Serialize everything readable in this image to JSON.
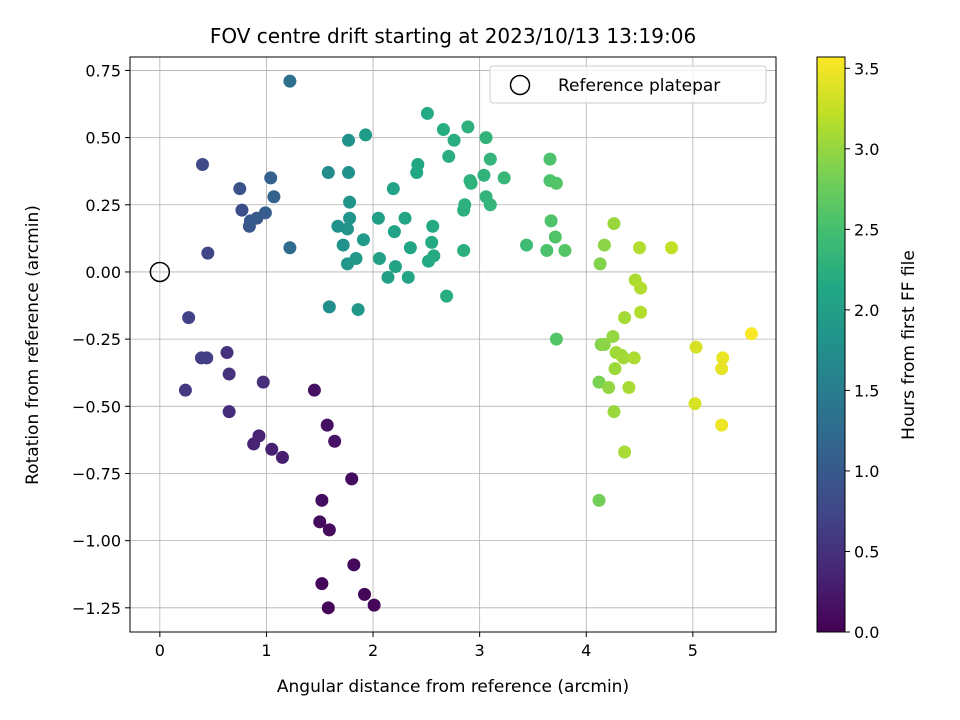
{
  "chart_data": {
    "type": "scatter",
    "title": "FOV centre drift starting at 2023/10/13 13:19:06",
    "xlabel": "Angular distance from reference (arcmin)",
    "ylabel": "Rotation from reference (arcmin)",
    "xlim": [
      -0.28,
      5.78
    ],
    "ylim": [
      -1.34,
      0.8
    ],
    "x_ticks": [
      0,
      1,
      2,
      3,
      4,
      5
    ],
    "x_tick_labels": [
      "0",
      "1",
      "2",
      "3",
      "4",
      "5"
    ],
    "y_ticks": [
      0.75,
      0.5,
      0.25,
      0.0,
      -0.25,
      -0.5,
      -0.75,
      -1.0,
      -1.25
    ],
    "y_tick_labels": [
      "0.75",
      "0.50",
      "0.25",
      "0.00",
      "−0.25",
      "−0.50",
      "−0.75",
      "−1.00",
      "−1.25"
    ],
    "grid": true,
    "colormap": "viridis",
    "colorbar": {
      "label": "Hours from first FF file",
      "min": 0.0,
      "max": 3.57,
      "ticks": [
        0.0,
        0.5,
        1.0,
        1.5,
        2.0,
        2.5,
        3.0,
        3.5
      ],
      "tick_labels": [
        "0.0",
        "0.5",
        "1.0",
        "1.5",
        "2.0",
        "2.5",
        "3.0",
        "3.5"
      ]
    },
    "legend": {
      "placement": "top-right",
      "entries": [
        {
          "label": "Reference platepar",
          "marker": "open-circle"
        }
      ]
    },
    "reference_point": {
      "x": 0.0,
      "y": 0.0
    },
    "points": [
      {
        "x": 1.52,
        "y": -1.16,
        "c": 0.05
      },
      {
        "x": 1.58,
        "y": -1.25,
        "c": 0.05
      },
      {
        "x": 1.92,
        "y": -1.2,
        "c": 0.06
      },
      {
        "x": 2.01,
        "y": -1.24,
        "c": 0.06
      },
      {
        "x": 1.82,
        "y": -1.09,
        "c": 0.08
      },
      {
        "x": 1.5,
        "y": -0.93,
        "c": 0.1
      },
      {
        "x": 1.59,
        "y": -0.96,
        "c": 0.1
      },
      {
        "x": 1.52,
        "y": -0.85,
        "c": 0.12
      },
      {
        "x": 1.8,
        "y": -0.77,
        "c": 0.12
      },
      {
        "x": 1.45,
        "y": -0.44,
        "c": 0.15
      },
      {
        "x": 1.57,
        "y": -0.57,
        "c": 0.15
      },
      {
        "x": 1.64,
        "y": -0.63,
        "c": 0.18
      },
      {
        "x": 1.15,
        "y": -0.69,
        "c": 0.3
      },
      {
        "x": 1.05,
        "y": -0.66,
        "c": 0.32
      },
      {
        "x": 0.88,
        "y": -0.64,
        "c": 0.35
      },
      {
        "x": 0.93,
        "y": -0.61,
        "c": 0.36
      },
      {
        "x": 0.65,
        "y": -0.52,
        "c": 0.45
      },
      {
        "x": 0.97,
        "y": -0.41,
        "c": 0.48
      },
      {
        "x": 0.63,
        "y": -0.3,
        "c": 0.5
      },
      {
        "x": 0.65,
        "y": -0.38,
        "c": 0.52
      },
      {
        "x": 0.24,
        "y": -0.44,
        "c": 0.6
      },
      {
        "x": 0.39,
        "y": -0.32,
        "c": 0.65
      },
      {
        "x": 0.44,
        "y": -0.32,
        "c": 0.66
      },
      {
        "x": 0.27,
        "y": -0.17,
        "c": 0.7
      },
      {
        "x": 0.45,
        "y": 0.07,
        "c": 0.75
      },
      {
        "x": 0.4,
        "y": 0.4,
        "c": 0.8
      },
      {
        "x": 0.77,
        "y": 0.23,
        "c": 0.85
      },
      {
        "x": 0.75,
        "y": 0.31,
        "c": 0.9
      },
      {
        "x": 0.85,
        "y": 0.19,
        "c": 0.95
      },
      {
        "x": 0.84,
        "y": 0.17,
        "c": 0.97
      },
      {
        "x": 0.91,
        "y": 0.2,
        "c": 1.0
      },
      {
        "x": 0.99,
        "y": 0.22,
        "c": 1.05
      },
      {
        "x": 1.04,
        "y": 0.35,
        "c": 1.1
      },
      {
        "x": 1.07,
        "y": 0.28,
        "c": 1.12
      },
      {
        "x": 1.22,
        "y": 0.09,
        "c": 1.25
      },
      {
        "x": 1.22,
        "y": 0.71,
        "c": 1.3
      },
      {
        "x": 1.58,
        "y": 0.37,
        "c": 1.7
      },
      {
        "x": 1.59,
        "y": -0.13,
        "c": 1.75
      },
      {
        "x": 1.67,
        "y": 0.17,
        "c": 1.78
      },
      {
        "x": 1.72,
        "y": 0.1,
        "c": 1.8
      },
      {
        "x": 1.76,
        "y": 0.16,
        "c": 1.82
      },
      {
        "x": 1.77,
        "y": 0.37,
        "c": 1.8
      },
      {
        "x": 1.77,
        "y": 0.49,
        "c": 1.82
      },
      {
        "x": 1.78,
        "y": 0.2,
        "c": 1.84
      },
      {
        "x": 1.78,
        "y": 0.26,
        "c": 1.85
      },
      {
        "x": 1.76,
        "y": 0.03,
        "c": 1.86
      },
      {
        "x": 1.84,
        "y": 0.05,
        "c": 1.9
      },
      {
        "x": 1.86,
        "y": -0.14,
        "c": 1.9
      },
      {
        "x": 1.91,
        "y": 0.12,
        "c": 1.92
      },
      {
        "x": 1.93,
        "y": 0.51,
        "c": 1.95
      },
      {
        "x": 2.05,
        "y": 0.2,
        "c": 2.0
      },
      {
        "x": 2.06,
        "y": 0.05,
        "c": 2.0
      },
      {
        "x": 2.14,
        "y": -0.02,
        "c": 2.02
      },
      {
        "x": 2.19,
        "y": 0.31,
        "c": 2.05
      },
      {
        "x": 2.2,
        "y": 0.15,
        "c": 2.05
      },
      {
        "x": 2.21,
        "y": 0.02,
        "c": 2.06
      },
      {
        "x": 2.3,
        "y": 0.2,
        "c": 2.08
      },
      {
        "x": 2.33,
        "y": -0.02,
        "c": 2.08
      },
      {
        "x": 2.35,
        "y": 0.09,
        "c": 2.1
      },
      {
        "x": 2.41,
        "y": 0.37,
        "c": 2.12
      },
      {
        "x": 2.42,
        "y": 0.4,
        "c": 2.12
      },
      {
        "x": 2.51,
        "y": 0.59,
        "c": 2.15
      },
      {
        "x": 2.52,
        "y": 0.04,
        "c": 2.15
      },
      {
        "x": 2.55,
        "y": 0.11,
        "c": 2.16
      },
      {
        "x": 2.56,
        "y": 0.17,
        "c": 2.16
      },
      {
        "x": 2.57,
        "y": 0.06,
        "c": 2.17
      },
      {
        "x": 2.66,
        "y": 0.53,
        "c": 2.2
      },
      {
        "x": 2.69,
        "y": -0.09,
        "c": 2.2
      },
      {
        "x": 2.71,
        "y": 0.43,
        "c": 2.22
      },
      {
        "x": 2.76,
        "y": 0.49,
        "c": 2.22
      },
      {
        "x": 2.85,
        "y": 0.08,
        "c": 2.25
      },
      {
        "x": 2.85,
        "y": 0.23,
        "c": 2.25
      },
      {
        "x": 2.86,
        "y": 0.25,
        "c": 2.26
      },
      {
        "x": 2.89,
        "y": 0.54,
        "c": 2.27
      },
      {
        "x": 2.92,
        "y": 0.33,
        "c": 2.28
      },
      {
        "x": 2.91,
        "y": 0.34,
        "c": 2.28
      },
      {
        "x": 3.04,
        "y": 0.36,
        "c": 2.3
      },
      {
        "x": 3.06,
        "y": 0.28,
        "c": 2.32
      },
      {
        "x": 3.06,
        "y": 0.5,
        "c": 2.32
      },
      {
        "x": 3.1,
        "y": 0.42,
        "c": 2.33
      },
      {
        "x": 3.1,
        "y": 0.25,
        "c": 2.34
      },
      {
        "x": 3.23,
        "y": 0.35,
        "c": 2.36
      },
      {
        "x": 3.44,
        "y": 0.1,
        "c": 2.45
      },
      {
        "x": 3.63,
        "y": 0.08,
        "c": 2.55
      },
      {
        "x": 3.66,
        "y": 0.42,
        "c": 2.55
      },
      {
        "x": 3.66,
        "y": 0.34,
        "c": 2.56
      },
      {
        "x": 3.67,
        "y": 0.19,
        "c": 2.57
      },
      {
        "x": 3.71,
        "y": 0.13,
        "c": 2.58
      },
      {
        "x": 3.72,
        "y": 0.33,
        "c": 2.6
      },
      {
        "x": 3.72,
        "y": -0.25,
        "c": 2.6
      },
      {
        "x": 3.8,
        "y": 0.08,
        "c": 2.62
      },
      {
        "x": 4.12,
        "y": -0.85,
        "c": 2.8
      },
      {
        "x": 4.12,
        "y": -0.41,
        "c": 2.85
      },
      {
        "x": 4.14,
        "y": -0.27,
        "c": 2.88
      },
      {
        "x": 4.13,
        "y": 0.03,
        "c": 2.9
      },
      {
        "x": 4.17,
        "y": 0.1,
        "c": 2.95
      },
      {
        "x": 4.17,
        "y": -0.27,
        "c": 2.95
      },
      {
        "x": 4.21,
        "y": -0.43,
        "c": 2.98
      },
      {
        "x": 4.25,
        "y": -0.24,
        "c": 3.0
      },
      {
        "x": 4.26,
        "y": 0.18,
        "c": 3.02
      },
      {
        "x": 4.26,
        "y": -0.52,
        "c": 3.02
      },
      {
        "x": 4.27,
        "y": -0.36,
        "c": 3.04
      },
      {
        "x": 4.28,
        "y": -0.3,
        "c": 3.05
      },
      {
        "x": 4.33,
        "y": -0.31,
        "c": 3.06
      },
      {
        "x": 4.35,
        "y": -0.32,
        "c": 3.07
      },
      {
        "x": 4.36,
        "y": -0.17,
        "c": 3.08
      },
      {
        "x": 4.36,
        "y": -0.67,
        "c": 3.1
      },
      {
        "x": 4.4,
        "y": -0.43,
        "c": 3.1
      },
      {
        "x": 4.45,
        "y": -0.32,
        "c": 3.12
      },
      {
        "x": 4.46,
        "y": -0.03,
        "c": 3.13
      },
      {
        "x": 4.5,
        "y": 0.09,
        "c": 3.15
      },
      {
        "x": 4.51,
        "y": -0.06,
        "c": 3.15
      },
      {
        "x": 4.51,
        "y": -0.15,
        "c": 3.16
      },
      {
        "x": 4.8,
        "y": 0.09,
        "c": 3.25
      },
      {
        "x": 5.02,
        "y": -0.49,
        "c": 3.35
      },
      {
        "x": 5.03,
        "y": -0.28,
        "c": 3.36
      },
      {
        "x": 5.27,
        "y": -0.36,
        "c": 3.45
      },
      {
        "x": 5.28,
        "y": -0.32,
        "c": 3.46
      },
      {
        "x": 5.27,
        "y": -0.57,
        "c": 3.48
      },
      {
        "x": 5.55,
        "y": -0.23,
        "c": 3.55
      }
    ]
  }
}
